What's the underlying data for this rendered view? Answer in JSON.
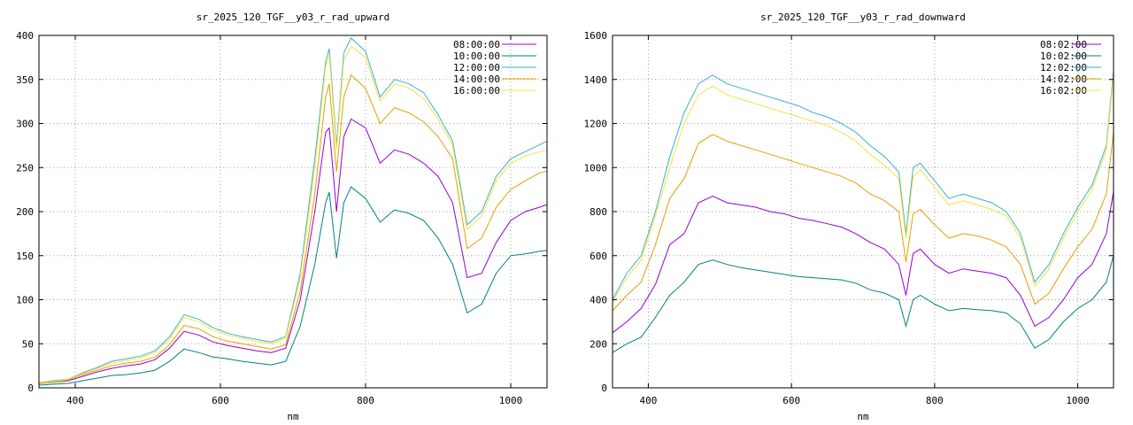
{
  "chart_data": [
    {
      "type": "line",
      "title": "sr_2025_120_TGF__y03_r_rad_upward",
      "xlabel": "nm",
      "ylabel": "",
      "xlim": [
        350,
        1050
      ],
      "ylim": [
        0,
        400
      ],
      "xticks": [
        400,
        600,
        800,
        1000
      ],
      "yticks": [
        0,
        50,
        100,
        150,
        200,
        250,
        300,
        350,
        400
      ],
      "grid": true,
      "legend_position": "top-right",
      "x": [
        350,
        370,
        390,
        410,
        430,
        450,
        470,
        490,
        510,
        530,
        550,
        570,
        590,
        610,
        630,
        650,
        670,
        690,
        710,
        730,
        745,
        750,
        760,
        770,
        780,
        800,
        820,
        840,
        860,
        880,
        900,
        920,
        940,
        960,
        980,
        1000,
        1020,
        1040,
        1050
      ],
      "series": [
        {
          "name": "08:00:00",
          "color": "#9400d3",
          "values": [
            5,
            6,
            8,
            13,
            18,
            22,
            25,
            27,
            32,
            45,
            64,
            60,
            52,
            48,
            45,
            42,
            40,
            45,
            100,
            200,
            290,
            295,
            200,
            285,
            305,
            295,
            255,
            270,
            265,
            255,
            240,
            210,
            125,
            130,
            165,
            190,
            200,
            205,
            208
          ]
        },
        {
          "name": "10:00:00",
          "color": "#008080",
          "values": [
            3,
            4,
            5,
            8,
            11,
            14,
            15,
            17,
            20,
            30,
            44,
            40,
            35,
            33,
            30,
            28,
            26,
            30,
            70,
            140,
            210,
            222,
            147,
            210,
            228,
            215,
            188,
            202,
            198,
            190,
            170,
            140,
            85,
            95,
            130,
            150,
            152,
            155,
            156
          ]
        },
        {
          "name": "12:00:00",
          "color": "#3cb0c8",
          "values": [
            6,
            8,
            10,
            17,
            23,
            30,
            33,
            36,
            42,
            58,
            83,
            78,
            68,
            62,
            58,
            55,
            52,
            58,
            130,
            260,
            370,
            385,
            275,
            380,
            397,
            382,
            330,
            350,
            345,
            335,
            310,
            280,
            185,
            200,
            240,
            260,
            268,
            276,
            280
          ]
        },
        {
          "name": "14:00:00",
          "color": "#e69f00",
          "values": [
            5,
            6,
            9,
            15,
            20,
            25,
            28,
            30,
            35,
            49,
            71,
            67,
            58,
            53,
            50,
            47,
            44,
            49,
            110,
            220,
            330,
            345,
            245,
            330,
            355,
            340,
            300,
            318,
            312,
            302,
            285,
            260,
            158,
            170,
            205,
            225,
            235,
            244,
            246
          ]
        },
        {
          "name": "16:00:00",
          "color": "#f0e442",
          "values": [
            6,
            7,
            10,
            16,
            22,
            28,
            31,
            34,
            40,
            55,
            80,
            75,
            65,
            60,
            56,
            53,
            50,
            56,
            125,
            250,
            365,
            378,
            270,
            372,
            388,
            375,
            325,
            345,
            340,
            328,
            305,
            275,
            180,
            195,
            235,
            255,
            263,
            268,
            270
          ]
        }
      ]
    },
    {
      "type": "line",
      "title": "sr_2025_120_TGF__y03_r_rad_downward",
      "xlabel": "nm",
      "ylabel": "",
      "xlim": [
        350,
        1050
      ],
      "ylim": [
        0,
        1600
      ],
      "xticks": [
        400,
        600,
        800,
        1000
      ],
      "yticks": [
        0,
        200,
        400,
        600,
        800,
        1000,
        1200,
        1400,
        1600
      ],
      "grid": true,
      "legend_position": "top-right",
      "x": [
        350,
        370,
        390,
        410,
        430,
        450,
        470,
        490,
        510,
        530,
        550,
        570,
        590,
        610,
        630,
        650,
        670,
        690,
        710,
        730,
        750,
        760,
        770,
        780,
        800,
        820,
        840,
        860,
        880,
        900,
        920,
        940,
        960,
        980,
        1000,
        1020,
        1040,
        1050
      ],
      "series": [
        {
          "name": "08:02:00",
          "color": "#9400d3",
          "values": [
            250,
            300,
            360,
            470,
            650,
            700,
            840,
            870,
            840,
            830,
            820,
            800,
            790,
            770,
            760,
            745,
            730,
            700,
            660,
            630,
            560,
            420,
            610,
            630,
            560,
            520,
            540,
            530,
            520,
            500,
            420,
            280,
            320,
            400,
            500,
            560,
            700,
            890
          ]
        },
        {
          "name": "10:02:00",
          "color": "#008080",
          "values": [
            160,
            200,
            230,
            320,
            420,
            480,
            560,
            580,
            560,
            545,
            535,
            525,
            515,
            505,
            500,
            495,
            490,
            475,
            445,
            430,
            400,
            280,
            400,
            420,
            380,
            350,
            360,
            355,
            350,
            340,
            290,
            180,
            220,
            300,
            360,
            400,
            480,
            600
          ]
        },
        {
          "name": "12:02:00",
          "color": "#3cb0c8",
          "values": [
            400,
            520,
            600,
            800,
            1050,
            1250,
            1380,
            1420,
            1380,
            1360,
            1340,
            1320,
            1300,
            1280,
            1250,
            1230,
            1200,
            1160,
            1100,
            1050,
            980,
            700,
            1000,
            1020,
            940,
            860,
            880,
            860,
            840,
            800,
            700,
            480,
            560,
            700,
            820,
            920,
            1100,
            1440
          ]
        },
        {
          "name": "14:02:00",
          "color": "#e69f00",
          "values": [
            350,
            420,
            480,
            650,
            860,
            950,
            1110,
            1150,
            1120,
            1100,
            1080,
            1060,
            1040,
            1020,
            1000,
            980,
            960,
            930,
            880,
            850,
            800,
            570,
            790,
            810,
            740,
            680,
            700,
            690,
            670,
            640,
            560,
            380,
            430,
            540,
            640,
            720,
            880,
            1160
          ]
        },
        {
          "name": "16:02:00",
          "color": "#f0e442",
          "values": [
            390,
            500,
            580,
            780,
            1000,
            1200,
            1330,
            1370,
            1330,
            1310,
            1290,
            1270,
            1250,
            1230,
            1210,
            1190,
            1160,
            1120,
            1060,
            1010,
            950,
            680,
            960,
            990,
            910,
            830,
            850,
            830,
            810,
            780,
            680,
            460,
            540,
            680,
            800,
            900,
            1080,
            1420
          ]
        }
      ]
    }
  ]
}
